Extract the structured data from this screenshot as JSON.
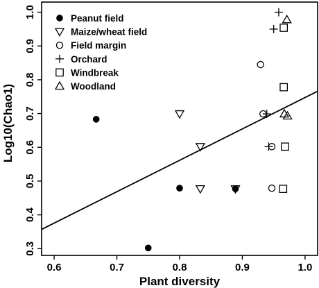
{
  "chart_data": {
    "type": "scatter",
    "title": "",
    "xlabel": "Plant diversity",
    "ylabel": "Log10(Chao1)",
    "xlim": [
      0.58,
      1.02
    ],
    "ylim": [
      0.28,
      1.03
    ],
    "x_ticks": [
      0.6,
      0.7,
      0.8,
      0.9,
      1.0
    ],
    "x_tick_labels": [
      "0.6",
      "0.7",
      "0.8",
      "0.9",
      "1.0"
    ],
    "y_ticks": [
      0.3,
      0.4,
      0.5,
      0.6,
      0.7,
      0.8,
      0.9,
      1.0
    ],
    "y_tick_labels": [
      "0.3",
      "0.4",
      "0.5",
      "0.6",
      "0.7",
      "0.8",
      "0.9",
      "1.0"
    ],
    "grid": false,
    "legend_position": "top-left",
    "series": [
      {
        "name": "Peanut field",
        "marker": "filled-circle",
        "points": [
          [
            0.667,
            0.683
          ],
          [
            0.75,
            0.302
          ],
          [
            0.8,
            0.479
          ],
          [
            0.889,
            0.477
          ]
        ]
      },
      {
        "name": "Maize/wheat field",
        "marker": "down-triangle",
        "points": [
          [
            0.8,
            0.699
          ],
          [
            0.833,
            0.602
          ],
          [
            0.833,
            0.477
          ],
          [
            0.889,
            0.477
          ]
        ]
      },
      {
        "name": "Field margin",
        "marker": "open-circle",
        "points": [
          [
            0.929,
            0.845
          ],
          [
            0.933,
            0.699
          ],
          [
            0.947,
            0.602
          ],
          [
            0.947,
            0.479
          ]
        ]
      },
      {
        "name": "Orchard",
        "marker": "plus",
        "points": [
          [
            0.95,
            0.95
          ],
          [
            0.958,
            1.0
          ],
          [
            0.939,
            0.699
          ],
          [
            0.942,
            0.602
          ]
        ]
      },
      {
        "name": "Windbreak",
        "marker": "square",
        "points": [
          [
            0.966,
            0.954
          ],
          [
            0.966,
            0.778
          ],
          [
            0.968,
            0.602
          ],
          [
            0.965,
            0.477
          ]
        ]
      },
      {
        "name": "Woodland",
        "marker": "up-triangle",
        "points": [
          [
            0.971,
            0.978
          ],
          [
            0.967,
            0.699
          ],
          [
            0.972,
            0.693
          ]
        ]
      }
    ],
    "trendline": {
      "x": [
        0.58,
        1.02
      ],
      "y": [
        0.357,
        0.766
      ]
    }
  }
}
